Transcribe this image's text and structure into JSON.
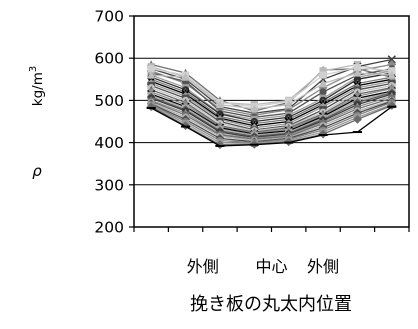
{
  "chart_data": {
    "type": "line",
    "title": "",
    "xlabel": "挽き板の丸太内位置",
    "ylabel": "ρ",
    "ylabel_unit": "kg/m",
    "ylabel_unit_exponent": "3",
    "ylim": [
      200,
      700
    ],
    "yticks": [
      200,
      300,
      400,
      500,
      600,
      700
    ],
    "x": [
      1,
      2,
      3,
      4,
      5,
      6,
      7,
      8
    ],
    "xlim": [
      0.5,
      8.5
    ],
    "category_labels": [
      {
        "x": 2.5,
        "text": "外側"
      },
      {
        "x": 4.5,
        "text": "中心"
      },
      {
        "x": 6.0,
        "text": "外側"
      }
    ],
    "grid": {
      "horizontal": true,
      "vertical": false
    },
    "legend": "none",
    "series": [
      {
        "values": [
          585,
          565,
          500,
          475,
          495,
          572,
          575,
          555
        ],
        "color": "#6f6f6f",
        "marker": "triangle"
      },
      {
        "values": [
          580,
          555,
          495,
          490,
          500,
          570,
          585,
          565
        ],
        "color": "#b9b9b9",
        "marker": "square"
      },
      {
        "values": [
          575,
          550,
          485,
          470,
          480,
          550,
          580,
          597
        ],
        "color": "#404040",
        "marker": "x"
      },
      {
        "values": [
          570,
          540,
          480,
          465,
          478,
          530,
          570,
          585
        ],
        "color": "#8a8a8a",
        "marker": "diamond"
      },
      {
        "values": [
          565,
          545,
          475,
          460,
          470,
          520,
          560,
          575
        ],
        "color": "#555555",
        "marker": "circle"
      },
      {
        "values": [
          560,
          530,
          470,
          455,
          465,
          505,
          555,
          570
        ],
        "color": "#a0a0a0",
        "marker": "square"
      },
      {
        "values": [
          555,
          525,
          468,
          450,
          460,
          500,
          550,
          565
        ],
        "color": "#2e2e2e",
        "marker": "circle"
      },
      {
        "values": [
          550,
          520,
          462,
          445,
          455,
          495,
          540,
          555
        ],
        "color": "#7a7a7a",
        "marker": "triangle"
      },
      {
        "values": [
          545,
          515,
          458,
          440,
          450,
          490,
          535,
          550
        ],
        "color": "#000000",
        "marker": "star"
      },
      {
        "values": [
          540,
          510,
          455,
          435,
          445,
          485,
          530,
          545
        ],
        "color": "#999999",
        "marker": "diamond"
      },
      {
        "values": [
          535,
          505,
          450,
          430,
          440,
          478,
          525,
          540
        ],
        "color": "#4d4d4d",
        "marker": "square"
      },
      {
        "values": [
          530,
          500,
          445,
          428,
          438,
          472,
          520,
          535
        ],
        "color": "#c4c4c4",
        "marker": "circle"
      },
      {
        "values": [
          525,
          495,
          440,
          425,
          435,
          468,
          515,
          530
        ],
        "color": "#666666",
        "marker": "triangle"
      },
      {
        "values": [
          520,
          490,
          438,
          422,
          432,
          465,
          510,
          528
        ],
        "color": "#8c8c8c",
        "marker": "circle"
      },
      {
        "values": [
          515,
          485,
          435,
          420,
          428,
          462,
          505,
          522
        ],
        "color": "#000000",
        "marker": "x"
      },
      {
        "values": [
          512,
          482,
          432,
          418,
          425,
          458,
          500,
          520
        ],
        "color": "#a8a8a8",
        "marker": "square"
      },
      {
        "values": [
          508,
          478,
          428,
          415,
          422,
          455,
          495,
          518
        ],
        "color": "#5e5e5e",
        "marker": "diamond"
      },
      {
        "values": [
          505,
          475,
          425,
          412,
          420,
          452,
          490,
          515
        ],
        "color": "#3a3a3a",
        "marker": "circle"
      },
      {
        "values": [
          500,
          470,
          420,
          410,
          418,
          448,
          485,
          510
        ],
        "color": "#909090",
        "marker": "triangle"
      },
      {
        "values": [
          498,
          465,
          418,
          408,
          415,
          445,
          480,
          505
        ],
        "color": "#707070",
        "marker": "square"
      },
      {
        "values": [
          495,
          460,
          415,
          405,
          412,
          440,
          475,
          500
        ],
        "color": "#b0b0b0",
        "marker": "circle"
      },
      {
        "values": [
          492,
          455,
          410,
          402,
          410,
          435,
          470,
          498
        ],
        "color": "#4a4a4a",
        "marker": "diamond"
      },
      {
        "values": [
          490,
          450,
          405,
          400,
          408,
          430,
          465,
          495
        ],
        "color": "#808080",
        "marker": "circle"
      },
      {
        "values": [
          488,
          445,
          400,
          398,
          405,
          425,
          460,
          490
        ],
        "color": "#999999",
        "marker": "square"
      },
      {
        "values": [
          485,
          440,
          395,
          396,
          402,
          420,
          455,
          488
        ],
        "color": "#6a6a6a",
        "marker": "diamond"
      },
      {
        "values": [
          482,
          438,
          392,
          395,
          400,
          418,
          425,
          485
        ],
        "color": "#000000",
        "marker": "dash"
      },
      {
        "values": [
          575,
          560,
          495,
          485,
          498,
          560,
          578,
          570
        ],
        "color": "#d0d0d0",
        "marker": "square"
      },
      {
        "values": [
          560,
          555,
          490,
          480,
          490,
          540,
          565,
          560
        ],
        "color": "#bdbdbd",
        "marker": "triangle"
      }
    ]
  }
}
